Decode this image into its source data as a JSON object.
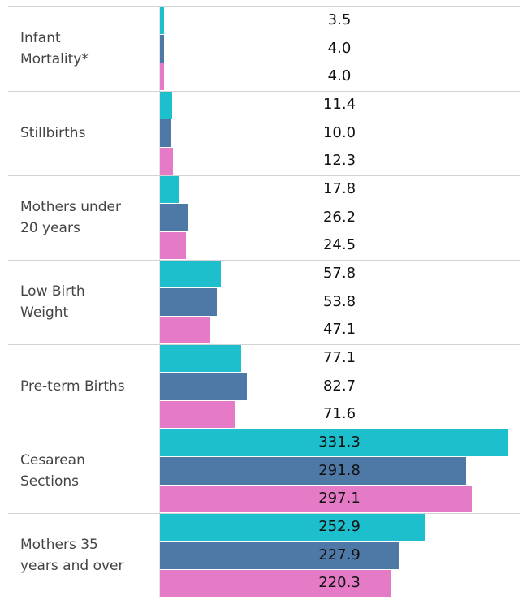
{
  "chart_data": {
    "type": "hbar",
    "categories": [
      "Infant\nMortality*",
      "Stillbirths",
      "Mothers under\n20 years",
      "Low Birth\nWeight",
      "Pre-term Births",
      "Cesarean\nSections",
      "Mothers 35\nyears and over"
    ],
    "series": [
      {
        "color": "#1ebfcc",
        "values": [
          3.5,
          11.4,
          17.8,
          57.8,
          77.1,
          331.3,
          252.9
        ]
      },
      {
        "color": "#4e79a7",
        "values": [
          4.0,
          10.0,
          26.2,
          53.8,
          82.7,
          291.8,
          227.9
        ]
      },
      {
        "color": "#e57ac6",
        "values": [
          4.0,
          12.3,
          24.5,
          47.1,
          71.6,
          297.1,
          220.3
        ]
      }
    ],
    "value_labels": [
      [
        "3.5",
        "11.4",
        "17.8",
        "57.8",
        "77.1",
        "331.3",
        "252.9"
      ],
      [
        "4.0",
        "10.0",
        "26.2",
        "53.8",
        "82.7",
        "291.8",
        "227.9"
      ],
      [
        "4.0",
        "12.3",
        "24.5",
        "47.1",
        "71.6",
        "297.1",
        "220.3"
      ]
    ]
  }
}
